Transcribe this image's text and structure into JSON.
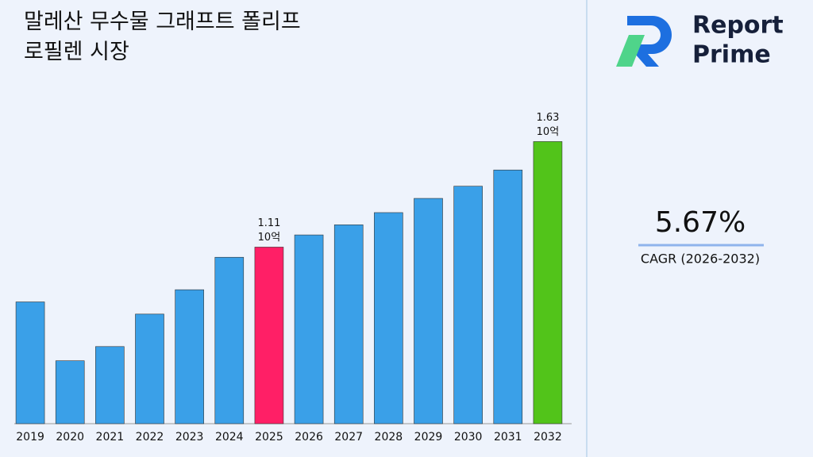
{
  "chart_data": {
    "type": "bar",
    "title": "말레산 무수물 그래프트 폴리프로필렌 시장",
    "categories": [
      "2019",
      "2020",
      "2021",
      "2022",
      "2023",
      "2024",
      "2025",
      "2026",
      "2027",
      "2028",
      "2029",
      "2030",
      "2031",
      "2032"
    ],
    "values": [
      0.84,
      0.55,
      0.62,
      0.78,
      0.9,
      1.06,
      1.11,
      1.17,
      1.22,
      1.28,
      1.35,
      1.41,
      1.49,
      1.63
    ],
    "value_labels": [
      null,
      null,
      null,
      null,
      null,
      null,
      "1.11",
      null,
      null,
      null,
      null,
      null,
      null,
      "1.63"
    ],
    "value_unit": "10억",
    "colors": [
      "#3aa0e8",
      "#3aa0e8",
      "#3aa0e8",
      "#3aa0e8",
      "#3aa0e8",
      "#3aa0e8",
      "#ff1f66",
      "#3aa0e8",
      "#3aa0e8",
      "#3aa0e8",
      "#3aa0e8",
      "#3aa0e8",
      "#3aa0e8",
      "#52c41a"
    ],
    "ylim": [
      0.24,
      1.96
    ]
  },
  "brand": {
    "line1": "Report",
    "line2": "Prime"
  },
  "cagr": {
    "value": "5.67%",
    "label": "CAGR (2026-2032)"
  }
}
